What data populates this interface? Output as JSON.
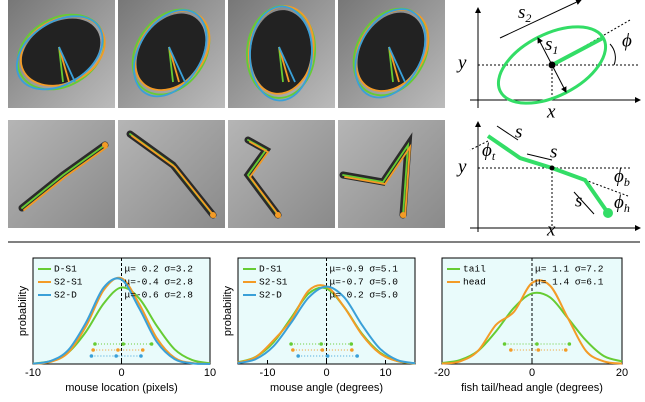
{
  "diagrams": {
    "ellipse": {
      "s2": {
        "base": "s",
        "sub": "2"
      },
      "s1": {
        "base": "s",
        "sub": "1"
      },
      "phi": "ϕ",
      "y": "y",
      "x": "x"
    },
    "fish": {
      "s": "s",
      "phi_t": {
        "base": "ϕ",
        "sub": "t"
      },
      "phi_b": {
        "base": "ϕ",
        "sub": "b"
      },
      "phi_h": {
        "base": "ϕ",
        "sub": "h"
      },
      "y": "y",
      "x": "x"
    }
  },
  "chart_data": [
    {
      "type": "line",
      "xlabel": "mouse location (pixels)",
      "ylabel": "probability",
      "legend": "upper left",
      "x": [
        -10,
        -8,
        -6,
        -4,
        -2,
        0,
        2,
        4,
        6,
        8,
        10
      ],
      "xlim": [
        -10,
        10
      ],
      "xticks": [
        -10,
        0,
        10
      ],
      "ylim": [
        0,
        0.16
      ],
      "series": [
        {
          "name": "D-S1",
          "color": "#66cc33",
          "values": [
            0.0008,
            0.0047,
            0.019,
            0.053,
            0.099,
            0.125,
            0.107,
            0.062,
            0.024,
            0.0064,
            0.0012
          ],
          "stats_label": "μ= 0.2 σ=3.2",
          "mean": 0.2,
          "std": 3.2
        },
        {
          "name": "S2-S1",
          "color": "#f39b26",
          "values": [
            0.0004,
            0.0036,
            0.019,
            0.062,
            0.121,
            0.14,
            0.098,
            0.042,
            0.01,
            0.0016,
            0.0002
          ],
          "stats_label": "μ=-0.4 σ=2.8",
          "mean": -0.4,
          "std": 2.8
        },
        {
          "name": "S2-D",
          "color": "#3aa0d8",
          "values": [
            0.0005,
            0.005,
            0.023,
            0.068,
            0.125,
            0.138,
            0.091,
            0.036,
            0.008,
            0.0011,
            0.0001
          ],
          "stats_label": "μ=-0.6 σ=2.8",
          "mean": -0.6,
          "std": 2.8
        }
      ]
    },
    {
      "type": "line",
      "xlabel": "mouse angle (degrees)",
      "ylabel": "probability",
      "legend": "upper left",
      "x": [
        -15,
        -12,
        -9,
        -6,
        -3,
        0,
        3,
        6,
        9,
        12,
        15
      ],
      "xlim": [
        -15,
        15
      ],
      "xticks": [
        -10,
        0,
        10
      ],
      "ylim": [
        0,
        0.1
      ],
      "series": [
        {
          "name": "D-S1",
          "color": "#66cc33",
          "values": [
            0.0017,
            0.0073,
            0.022,
            0.047,
            0.072,
            0.077,
            0.058,
            0.031,
            0.012,
            0.003,
            0.0006
          ],
          "stats_label": "μ=-0.9 σ=5.1",
          "mean": -0.9,
          "std": 5.1
        },
        {
          "name": "S2-S1",
          "color": "#f39b26",
          "values": [
            0.0014,
            0.007,
            0.024,
            0.045,
            0.075,
            0.079,
            0.058,
            0.03,
            0.011,
            0.003,
            0.0006
          ],
          "stats_label": "μ=-0.7 σ=5.0",
          "mean": -0.7,
          "std": 5.0
        },
        {
          "name": "S2-D",
          "color": "#3aa0d8",
          "values": [
            0.0009,
            0.005,
            0.018,
            0.042,
            0.068,
            0.079,
            0.068,
            0.04,
            0.016,
            0.004,
            0.0008
          ],
          "stats_label": "μ= 0.2 σ=5.0",
          "mean": 0.2,
          "std": 5.0
        }
      ]
    },
    {
      "type": "line",
      "xlabel": "fish tail/head angle (degrees)",
      "legend": "upper left",
      "x": [
        -20,
        -16,
        -12,
        -8,
        -4,
        0,
        4,
        8,
        12,
        16,
        20
      ],
      "xlim": [
        -20,
        20
      ],
      "xticks": [
        -20,
        0,
        20
      ],
      "ylim": [
        0,
        0.075
      ],
      "series": [
        {
          "name": "tail",
          "color": "#66cc33",
          "values": [
            0.0008,
            0.003,
            0.01,
            0.025,
            0.043,
            0.054,
            0.051,
            0.035,
            0.018,
            0.006,
            0.002
          ],
          "stats_label": "μ= 1.1 σ=7.2",
          "mean": 1.1,
          "std": 7.2
        },
        {
          "name": "head",
          "color": "#f39b26",
          "values": [
            0.0003,
            0.002,
            0.01,
            0.03,
            0.04,
            0.062,
            0.06,
            0.035,
            0.01,
            0.002,
            0.0003
          ],
          "stats_label": "μ= 1.4 σ=6.1",
          "mean": 1.4,
          "std": 6.1
        }
      ]
    }
  ]
}
